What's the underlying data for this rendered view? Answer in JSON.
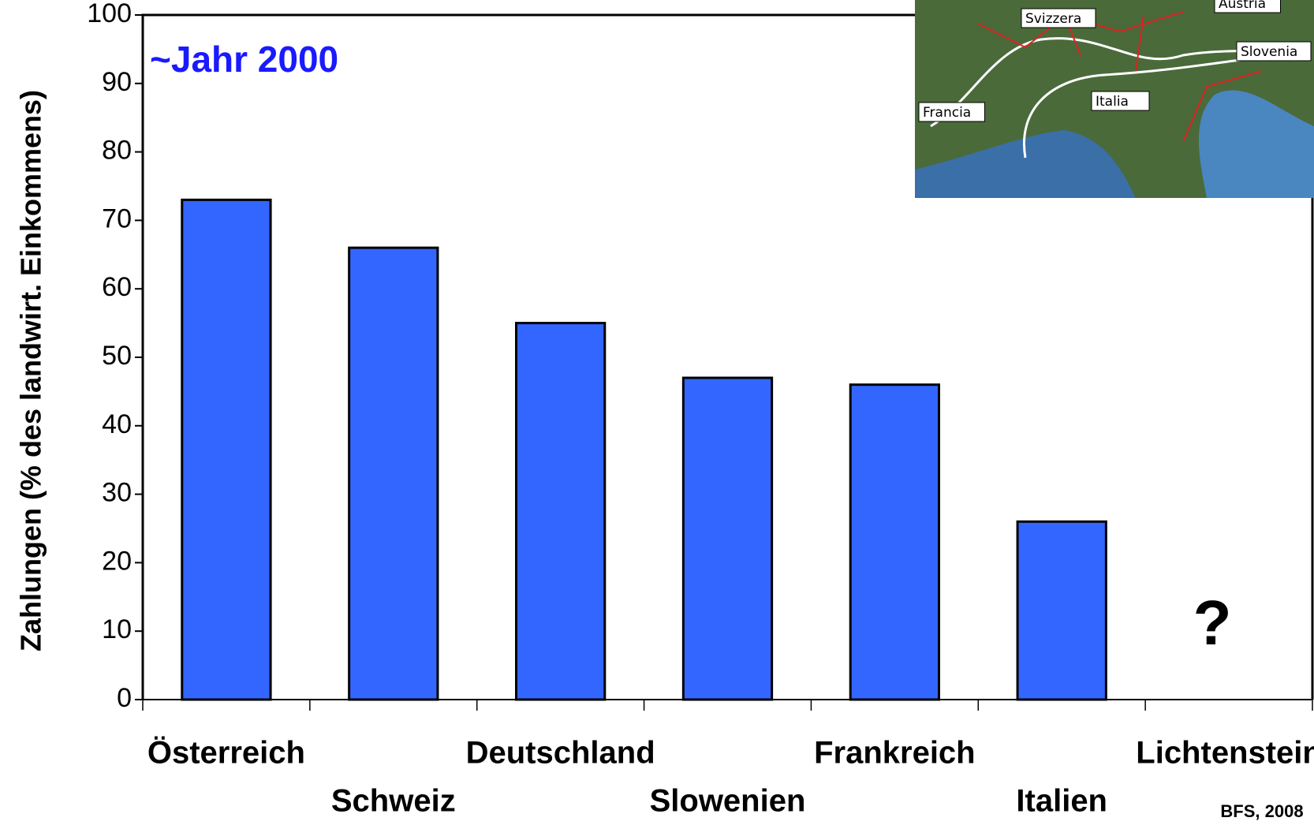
{
  "chart_data": {
    "type": "bar",
    "title": "~Jahr 2000",
    "y_label": "Zahlungen (% des landwirt. Einkommens)",
    "categories": [
      "Österreich",
      "Schweiz",
      "Deutschland",
      "Slowenien",
      "Frankreich",
      "Italien",
      "Lichtenstein"
    ],
    "values": [
      73,
      66,
      55,
      47,
      46,
      26,
      null
    ],
    "color": "#3366ff",
    "ylim": [
      0,
      100
    ],
    "yticks": [
      0,
      10,
      20,
      30,
      40,
      50,
      60,
      70,
      80,
      90,
      100
    ],
    "annotations": [
      "?"
    ],
    "source": "BFS, 2008",
    "map_labels": [
      "Svizzera",
      "Austria",
      "Slovenia",
      "Francia",
      "Italia"
    ]
  }
}
